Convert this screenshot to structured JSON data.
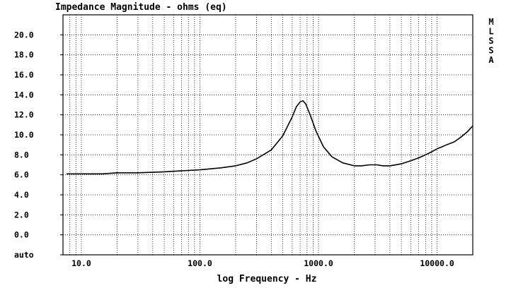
{
  "chart_data": {
    "type": "line",
    "title": "Impedance Magnitude - ohms (eq)",
    "xlabel": "log Frequency - Hz",
    "ylabel": "",
    "x_scale": "log",
    "xlim": [
      7,
      20000
    ],
    "ylim": [
      -2,
      22
    ],
    "grid": true,
    "x_tick_labels": [
      "10.0",
      "100.0",
      "1000.0",
      "10000.0"
    ],
    "x_tick_values": [
      10,
      100,
      1000,
      10000
    ],
    "y_tick_labels": [
      "20.0",
      "18.0",
      "16.0",
      "14.0",
      "12.0",
      "10.0",
      "8.0",
      "6.0",
      "4.0",
      "2.0",
      "0.0",
      "auto"
    ],
    "y_tick_values": [
      20,
      18,
      16,
      14,
      12,
      10,
      8,
      6,
      4,
      2,
      0,
      -2
    ],
    "side_label": [
      "M",
      "L",
      "S",
      "S",
      "A"
    ],
    "series": [
      {
        "x": [
          7.5,
          10,
          15,
          20,
          30,
          50,
          70,
          100,
          150,
          200,
          250,
          300,
          400,
          500,
          600,
          650,
          700,
          740,
          780,
          850,
          950,
          1100,
          1300,
          1600,
          2000,
          2300,
          2700,
          3100,
          3500,
          4000,
          5000,
          6000,
          7000,
          8000,
          9000,
          10000,
          11000,
          12000,
          14000,
          16000,
          18000,
          20000
        ],
        "y": [
          6.1,
          6.1,
          6.1,
          6.2,
          6.2,
          6.3,
          6.4,
          6.5,
          6.7,
          6.9,
          7.2,
          7.6,
          8.5,
          9.9,
          11.8,
          12.8,
          13.3,
          13.4,
          13.1,
          12.0,
          10.4,
          8.8,
          7.8,
          7.2,
          6.9,
          6.9,
          7.0,
          7.0,
          6.9,
          6.9,
          7.1,
          7.4,
          7.7,
          8.0,
          8.3,
          8.6,
          8.8,
          9.0,
          9.3,
          9.8,
          10.3,
          10.9
        ]
      }
    ]
  }
}
